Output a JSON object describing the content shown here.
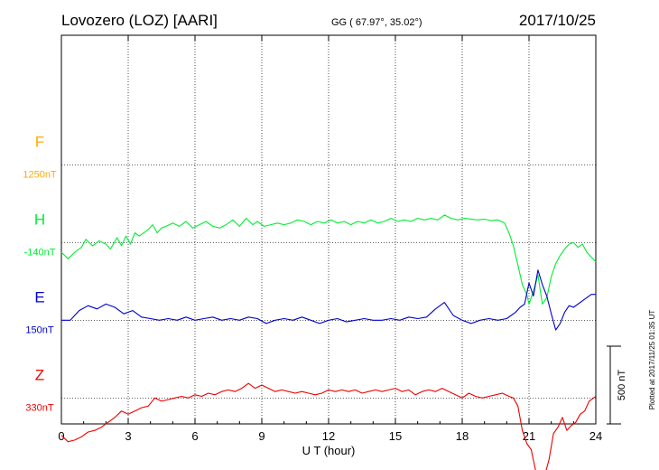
{
  "header": {
    "station": "Lovozero (LOZ)  [AARI]",
    "coords": "GG ( 67.97°,  35.02°)",
    "date": "2017/10/25"
  },
  "footer": {
    "plotted_note": "Plotted at 2017/11/25 01:35 UT",
    "scale_label": "500 nT"
  },
  "chart_data": {
    "type": "line",
    "xlabel": "U T (hour)",
    "xlim": [
      0,
      24
    ],
    "xticks": [
      0,
      3,
      6,
      9,
      12,
      15,
      18,
      21,
      24
    ],
    "xtick_labels": [
      "0",
      "3",
      "6",
      "9",
      "12",
      "15",
      "18",
      "21",
      "24"
    ],
    "ylim_nT": [
      -1850,
      550
    ],
    "scale_bar_nT": 500,
    "grid": true,
    "series": [
      {
        "name": "F",
        "baseline_label": "1250nT",
        "color": "#ffaa00",
        "x": [],
        "y": []
      },
      {
        "name": "H",
        "baseline_label": "-140nT",
        "color": "#00ee33",
        "x": [
          0,
          0.3,
          0.6,
          0.9,
          1.1,
          1.4,
          1.7,
          2.0,
          2.2,
          2.5,
          2.7,
          2.9,
          3.1,
          3.3,
          3.5,
          3.7,
          3.9,
          4.1,
          4.3,
          4.5,
          4.7,
          5.0,
          5.3,
          5.6,
          5.9,
          6.2,
          6.5,
          6.8,
          7.1,
          7.4,
          7.7,
          8.0,
          8.3,
          8.6,
          8.8,
          9.1,
          9.4,
          9.7,
          10.0,
          10.3,
          10.6,
          10.9,
          11.2,
          11.5,
          11.8,
          12.1,
          12.4,
          12.7,
          13.0,
          13.3,
          13.6,
          13.9,
          14.2,
          14.5,
          14.8,
          15.1,
          15.4,
          15.7,
          16.0,
          16.3,
          16.6,
          16.9,
          17.2,
          17.5,
          17.8,
          18.1,
          18.4,
          18.7,
          19.0,
          19.3,
          19.6,
          19.9,
          20.1,
          20.3,
          20.5,
          20.7,
          20.9,
          21.0,
          21.2,
          21.4,
          21.6,
          21.8,
          22.0,
          22.2,
          22.4,
          22.6,
          22.8,
          23.0,
          23.2,
          23.4,
          23.6,
          23.8,
          24.0
        ],
        "y": [
          -60,
          -100,
          -60,
          -30,
          20,
          -20,
          10,
          -10,
          -40,
          30,
          -20,
          40,
          -10,
          60,
          40,
          60,
          80,
          110,
          60,
          90,
          100,
          120,
          100,
          130,
          90,
          110,
          130,
          100,
          90,
          110,
          140,
          100,
          150,
          110,
          130,
          100,
          110,
          120,
          110,
          120,
          140,
          130,
          110,
          130,
          120,
          140,
          120,
          130,
          110,
          130,
          120,
          140,
          120,
          130,
          150,
          130,
          140,
          130,
          150,
          140,
          150,
          140,
          170,
          150,
          140,
          150,
          145,
          140,
          145,
          135,
          140,
          120,
          60,
          -20,
          -140,
          -260,
          -320,
          -380,
          -300,
          -200,
          -380,
          -340,
          -210,
          -130,
          -80,
          -40,
          -10,
          0,
          -30,
          -10,
          -60,
          -90,
          -120
        ]
      },
      {
        "name": "E",
        "baseline_label": "150nT",
        "color": "#0000cc",
        "x": [
          0,
          0.4,
          0.8,
          1.2,
          1.6,
          2.0,
          2.4,
          2.8,
          3.2,
          3.6,
          4.0,
          4.4,
          4.8,
          5.2,
          5.6,
          6.0,
          6.4,
          6.8,
          7.2,
          7.6,
          8.0,
          8.4,
          8.8,
          9.2,
          9.6,
          10.0,
          10.4,
          10.8,
          11.2,
          11.6,
          12.0,
          12.4,
          12.8,
          13.2,
          13.6,
          14.0,
          14.4,
          14.8,
          15.2,
          15.6,
          16.0,
          16.4,
          16.8,
          17.2,
          17.6,
          18.0,
          18.4,
          18.8,
          19.2,
          19.6,
          20.0,
          20.4,
          20.6,
          20.8,
          21.0,
          21.2,
          21.4,
          21.6,
          21.8,
          22.0,
          22.2,
          22.4,
          22.6,
          22.8,
          23.0,
          23.4,
          23.8,
          24.0
        ],
        "y": [
          0,
          0,
          60,
          90,
          70,
          100,
          80,
          40,
          60,
          20,
          10,
          0,
          10,
          0,
          20,
          0,
          10,
          20,
          0,
          10,
          0,
          20,
          10,
          -20,
          0,
          10,
          0,
          20,
          0,
          -20,
          0,
          10,
          -10,
          0,
          10,
          0,
          0,
          10,
          0,
          20,
          10,
          20,
          70,
          110,
          30,
          0,
          -20,
          0,
          10,
          0,
          10,
          50,
          80,
          100,
          230,
          150,
          310,
          220,
          150,
          40,
          -60,
          -20,
          50,
          90,
          80,
          120,
          160,
          160
        ]
      },
      {
        "name": "Z",
        "baseline_label": "330nT",
        "color": "#ee0000",
        "x": [
          0,
          0.3,
          0.6,
          0.9,
          1.2,
          1.5,
          1.8,
          2.1,
          2.4,
          2.7,
          3.0,
          3.3,
          3.6,
          3.9,
          4.2,
          4.5,
          4.8,
          5.1,
          5.4,
          5.7,
          6.0,
          6.3,
          6.6,
          6.9,
          7.2,
          7.5,
          7.8,
          8.1,
          8.4,
          8.7,
          9.0,
          9.3,
          9.6,
          9.9,
          10.2,
          10.5,
          10.8,
          11.1,
          11.4,
          11.7,
          12.0,
          12.3,
          12.6,
          12.9,
          13.2,
          13.5,
          13.8,
          14.1,
          14.4,
          14.7,
          15.0,
          15.3,
          15.6,
          15.9,
          16.2,
          16.5,
          16.8,
          17.1,
          17.4,
          17.7,
          18.0,
          18.3,
          18.6,
          18.9,
          19.2,
          19.5,
          19.8,
          20.1,
          20.3,
          20.5,
          20.7,
          20.9,
          21.1,
          21.3,
          21.5,
          21.7,
          21.9,
          22.1,
          22.3,
          22.5,
          22.7,
          22.9,
          23.1,
          23.3,
          23.5,
          23.7,
          23.9,
          24.0
        ],
        "y": [
          -230,
          -270,
          -260,
          -240,
          -210,
          -200,
          -180,
          -150,
          -120,
          -80,
          -100,
          -80,
          -60,
          -50,
          0,
          -20,
          -10,
          0,
          10,
          0,
          20,
          10,
          30,
          20,
          40,
          50,
          40,
          60,
          90,
          60,
          80,
          60,
          40,
          50,
          40,
          30,
          40,
          30,
          20,
          30,
          50,
          40,
          50,
          40,
          50,
          30,
          40,
          50,
          40,
          50,
          60,
          40,
          50,
          20,
          40,
          50,
          40,
          60,
          40,
          20,
          0,
          30,
          10,
          0,
          10,
          20,
          30,
          10,
          0,
          -50,
          -200,
          -280,
          -320,
          -450,
          -490,
          -480,
          -380,
          -220,
          -180,
          -120,
          -200,
          -170,
          -150,
          -100,
          -80,
          -20,
          0,
          10
        ]
      }
    ]
  }
}
